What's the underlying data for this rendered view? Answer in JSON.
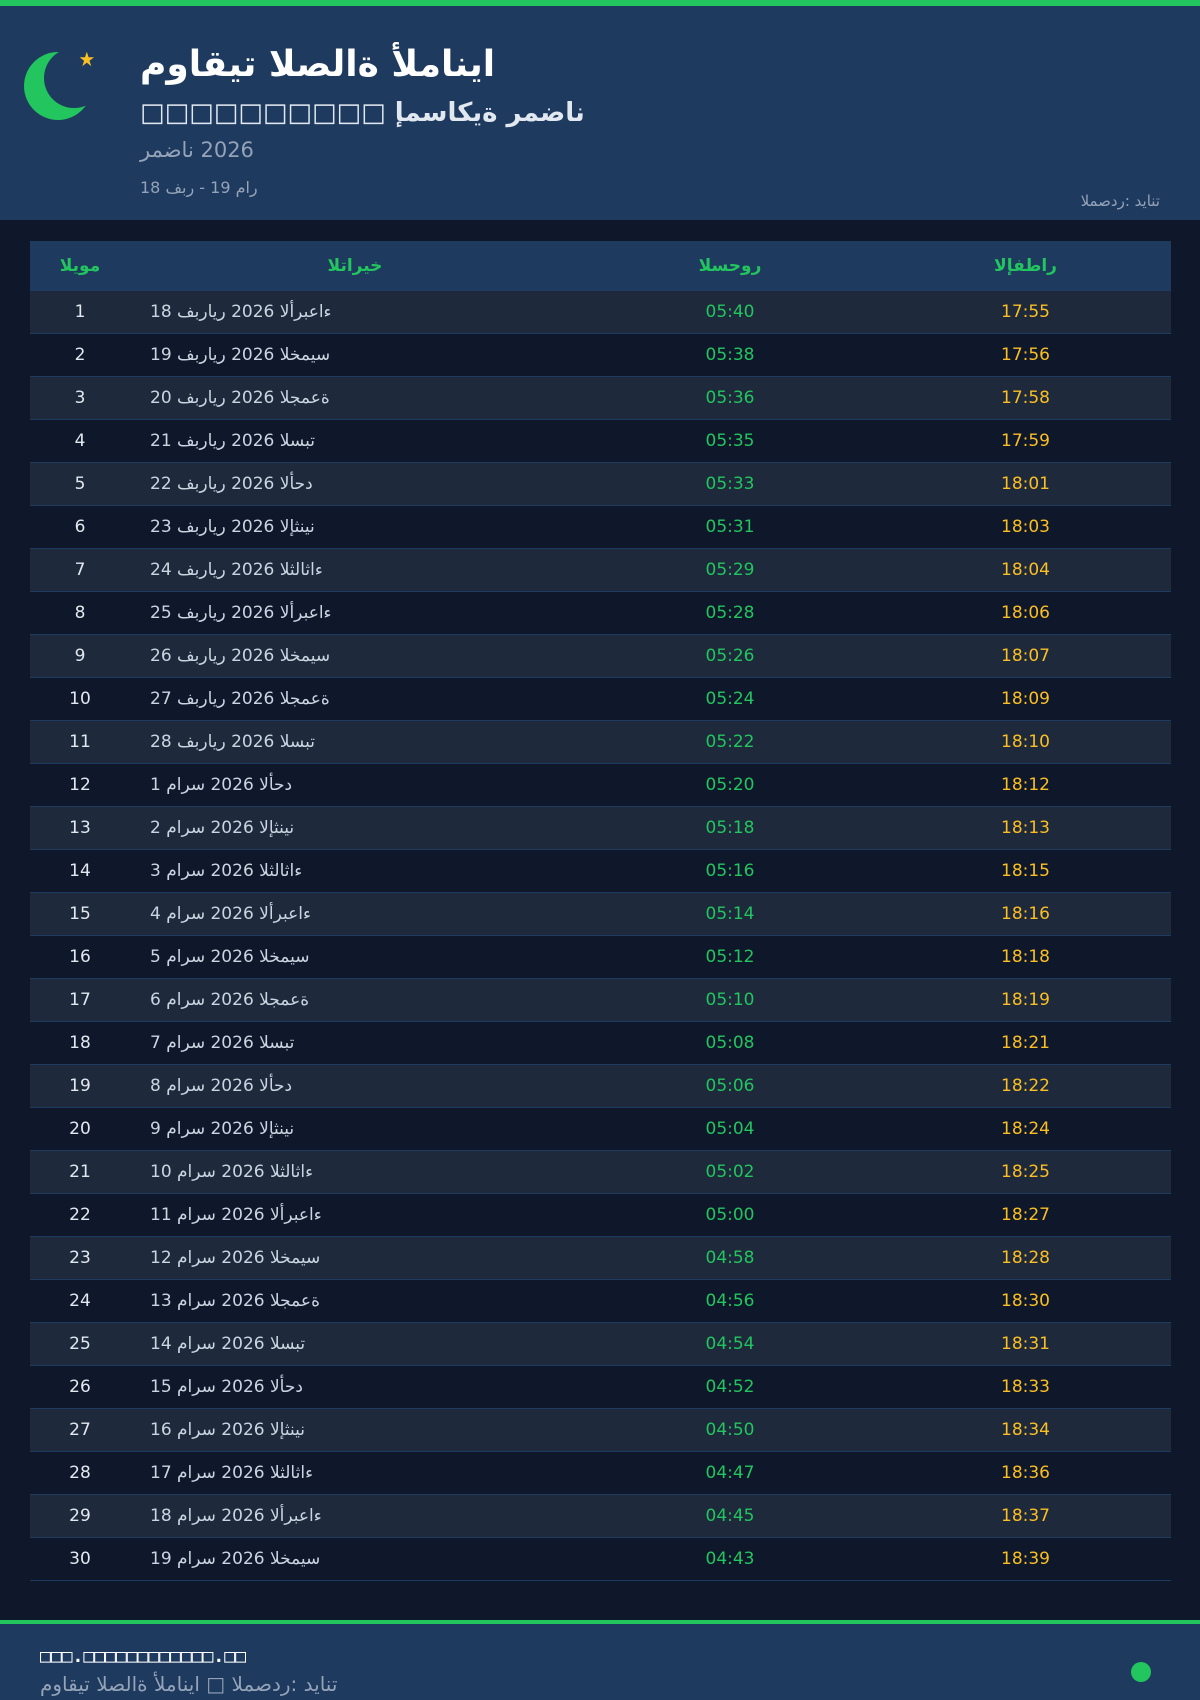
{
  "colors": {
    "accent": "#22c55e",
    "header_bg": "#1e3a5f",
    "iftar": "#fbbf24",
    "suhoor": "#22c55e"
  },
  "header": {
    "logo_icon": "crescent-star-icon",
    "title": "مواقيت الصلاة ألمانيا",
    "subtitle": "□□□□□□□□□□ إمساكية رمضان",
    "year": "رمضان 2026",
    "range": "18 فبر - 19 مار",
    "source": "المصدر: ديانت"
  },
  "table": {
    "columns": [
      "اليوم",
      "التاريخ",
      "السحور",
      "الإفطار"
    ],
    "rows": [
      [
        "1",
        "18 فبراير 2026 الأربعاء",
        "05:40",
        "17:55"
      ],
      [
        "2",
        "19 فبراير 2026 الخميس",
        "05:38",
        "17:56"
      ],
      [
        "3",
        "20 فبراير 2026 الجمعة",
        "05:36",
        "17:58"
      ],
      [
        "4",
        "21 فبراير 2026 السبت",
        "05:35",
        "17:59"
      ],
      [
        "5",
        "22 فبراير 2026 الأحد",
        "05:33",
        "18:01"
      ],
      [
        "6",
        "23 فبراير 2026 الإثنين",
        "05:31",
        "18:03"
      ],
      [
        "7",
        "24 فبراير 2026 الثلاثاء",
        "05:29",
        "18:04"
      ],
      [
        "8",
        "25 فبراير 2026 الأربعاء",
        "05:28",
        "18:06"
      ],
      [
        "9",
        "26 فبراير 2026 الخميس",
        "05:26",
        "18:07"
      ],
      [
        "10",
        "27 فبراير 2026 الجمعة",
        "05:24",
        "18:09"
      ],
      [
        "11",
        "28 فبراير 2026 السبت",
        "05:22",
        "18:10"
      ],
      [
        "12",
        "1 مارس 2026 الأحد",
        "05:20",
        "18:12"
      ],
      [
        "13",
        "2 مارس 2026 الإثنين",
        "05:18",
        "18:13"
      ],
      [
        "14",
        "3 مارس 2026 الثلاثاء",
        "05:16",
        "18:15"
      ],
      [
        "15",
        "4 مارس 2026 الأربعاء",
        "05:14",
        "18:16"
      ],
      [
        "16",
        "5 مارس 2026 الخميس",
        "05:12",
        "18:18"
      ],
      [
        "17",
        "6 مارس 2026 الجمعة",
        "05:10",
        "18:19"
      ],
      [
        "18",
        "7 مارس 2026 السبت",
        "05:08",
        "18:21"
      ],
      [
        "19",
        "8 مارس 2026 الأحد",
        "05:06",
        "18:22"
      ],
      [
        "20",
        "9 مارس 2026 الإثنين",
        "05:04",
        "18:24"
      ],
      [
        "21",
        "10 مارس 2026 الثلاثاء",
        "05:02",
        "18:25"
      ],
      [
        "22",
        "11 مارس 2026 الأربعاء",
        "05:00",
        "18:27"
      ],
      [
        "23",
        "12 مارس 2026 الخميس",
        "04:58",
        "18:28"
      ],
      [
        "24",
        "13 مارس 2026 الجمعة",
        "04:56",
        "18:30"
      ],
      [
        "25",
        "14 مارس 2026 السبت",
        "04:54",
        "18:31"
      ],
      [
        "26",
        "15 مارس 2026 الأحد",
        "04:52",
        "18:33"
      ],
      [
        "27",
        "16 مارس 2026 الإثنين",
        "04:50",
        "18:34"
      ],
      [
        "28",
        "17 مارس 2026 الثلاثاء",
        "04:47",
        "18:36"
      ],
      [
        "29",
        "18 مارس 2026 الأربعاء",
        "04:45",
        "18:37"
      ],
      [
        "30",
        "19 مارس 2026 الخميس",
        "04:43",
        "18:39"
      ]
    ]
  },
  "footer": {
    "website": "□□□.□□□□□□□□□□□□.□□",
    "credit": "مواقيت الصلاة ألمانيا □ المصدر: ديانت"
  }
}
